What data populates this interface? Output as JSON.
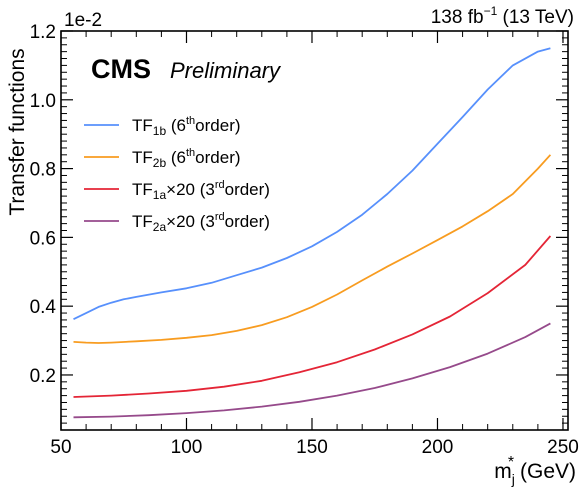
{
  "chart_data": {
    "type": "line",
    "top_left_label": "CMS",
    "top_left_sublabel": "Preliminary",
    "top_right_label": {
      "pre": "138 fb",
      "sup": "−1",
      "post": " (13 TeV)"
    },
    "scale_label": "1e-2",
    "xlabel": {
      "main": "m",
      "sub": "j",
      "sup": "*",
      "post": " (GeV)"
    },
    "ylabel": "Transfer functions",
    "xlim": [
      50,
      252
    ],
    "ylim": [
      0.04,
      1.2
    ],
    "xticks": [
      "50",
      "100",
      "150",
      "200",
      "250"
    ],
    "xtick_values": [
      50,
      100,
      150,
      200,
      250
    ],
    "yticks": [
      "0.2",
      "0.4",
      "0.6",
      "0.8",
      "1.0",
      "1.2"
    ],
    "ytick_values": [
      0.2,
      0.4,
      0.6,
      0.8,
      1.0,
      1.2
    ],
    "grid": false,
    "legend_position": "top-left",
    "series": [
      {
        "name": "TF1b (6thorder)",
        "label": {
          "main": "TF",
          "sub": "1b",
          "mid": " (6",
          "sup": "th",
          "post": "order)"
        },
        "color": "#5790fc",
        "x": [
          55,
          60,
          65,
          70,
          75,
          80,
          90,
          100,
          110,
          120,
          130,
          140,
          150,
          160,
          170,
          180,
          190,
          200,
          210,
          220,
          230,
          240,
          245
        ],
        "y": [
          0.362,
          0.38,
          0.398,
          0.41,
          0.42,
          0.427,
          0.44,
          0.452,
          0.468,
          0.49,
          0.512,
          0.54,
          0.574,
          0.616,
          0.666,
          0.726,
          0.794,
          0.872,
          0.95,
          1.03,
          1.1,
          1.14,
          1.15
        ]
      },
      {
        "name": "TF2b (6thorder)",
        "label": {
          "main": "TF",
          "sub": "2b",
          "mid": " (6",
          "sup": "th",
          "post": "order)"
        },
        "color": "#f89c20",
        "x": [
          55,
          60,
          65,
          70,
          80,
          90,
          100,
          110,
          120,
          130,
          140,
          150,
          160,
          170,
          180,
          190,
          200,
          210,
          220,
          230,
          240,
          245
        ],
        "y": [
          0.296,
          0.294,
          0.293,
          0.294,
          0.298,
          0.302,
          0.308,
          0.316,
          0.328,
          0.345,
          0.368,
          0.398,
          0.434,
          0.475,
          0.515,
          0.553,
          0.592,
          0.632,
          0.676,
          0.726,
          0.8,
          0.84
        ]
      },
      {
        "name": "TF1a×20 (3rdorder)",
        "label": {
          "main": "TF",
          "sub": "1a",
          "mid": "×20 (3",
          "sup": "rd",
          "post": "order)"
        },
        "color": "#e42536",
        "x": [
          55,
          70,
          85,
          100,
          115,
          130,
          145,
          160,
          175,
          190,
          205,
          220,
          235,
          245
        ],
        "y": [
          0.136,
          0.14,
          0.146,
          0.154,
          0.166,
          0.183,
          0.208,
          0.237,
          0.274,
          0.318,
          0.37,
          0.438,
          0.52,
          0.604
        ]
      },
      {
        "name": "TF2a×20 (3rdorder)",
        "label": {
          "main": "TF",
          "sub": "2a",
          "mid": "×20 (3",
          "sup": "rd",
          "post": "order)"
        },
        "color": "#964a8b",
        "x": [
          55,
          70,
          85,
          100,
          115,
          130,
          145,
          160,
          175,
          190,
          205,
          220,
          235,
          245
        ],
        "y": [
          0.077,
          0.079,
          0.083,
          0.089,
          0.097,
          0.108,
          0.122,
          0.14,
          0.162,
          0.19,
          0.223,
          0.262,
          0.31,
          0.35
        ]
      }
    ]
  }
}
